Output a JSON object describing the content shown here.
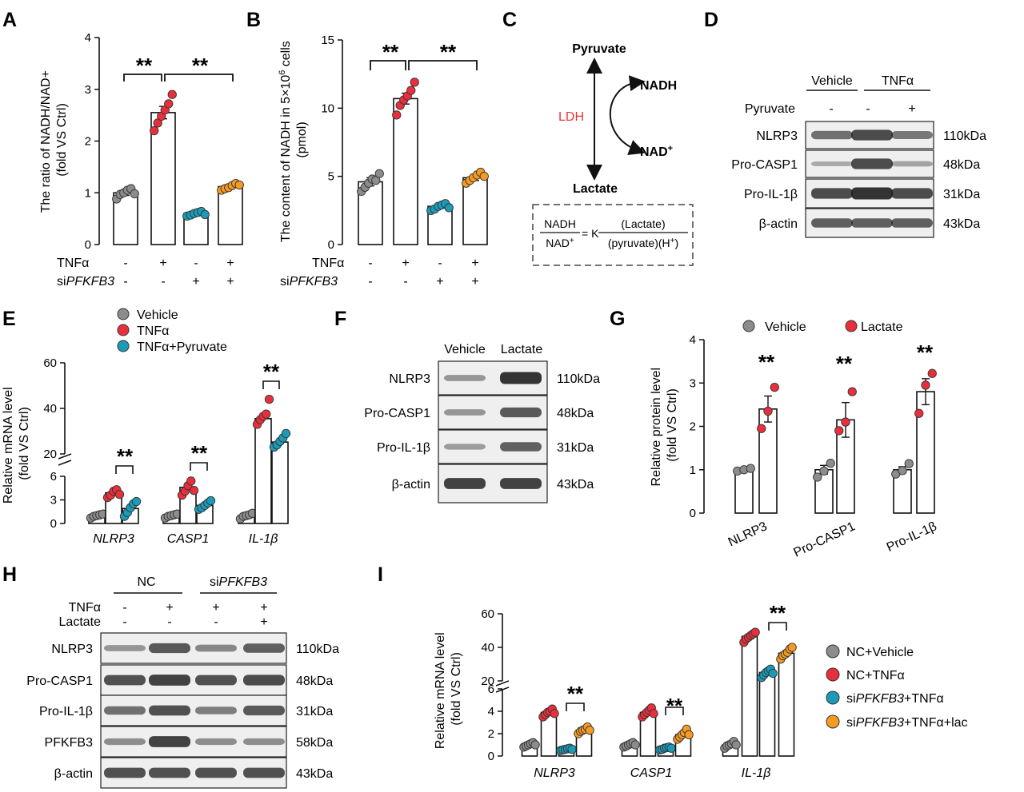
{
  "panel_letters": [
    "A",
    "B",
    "C",
    "D",
    "E",
    "F",
    "G",
    "H",
    "I"
  ],
  "colors": {
    "gray": "#8c8c8c",
    "red": "#e8303c",
    "teal": "#1b9bb8",
    "orange": "#f59a23",
    "redText": "#ee3333"
  },
  "sig_mark": "**",
  "treatment": {
    "tnf_label": "TNFα",
    "si_label_prefix": "si",
    "si_label_gene": "PFKFB3",
    "tnf_signs": [
      "-",
      "+",
      "-",
      "+"
    ],
    "si_signs": [
      "-",
      "-",
      "+",
      "+"
    ]
  },
  "panelA": {
    "ylabel_line1": "The ratio of NADH/NAD+",
    "ylabel_line2": "(fold VS Ctrl)",
    "yticks": [
      "0",
      "1",
      "2",
      "3",
      "4"
    ]
  },
  "panelB": {
    "ylabel_line1": "The content of NADH in 5×10",
    "ylabel_exp": "6",
    "ylabel_tail": " cells",
    "ylabel_line2": "(pmol)",
    "yticks": [
      "0",
      "5",
      "10",
      "15"
    ]
  },
  "panelC": {
    "top": "Pyruvate",
    "bottom": "Lactate",
    "nadh": "NADH",
    "nad": "NAD",
    "enzyme": "LDH",
    "eq_num_left": "NADH",
    "eq_den_left": "NAD",
    "eq_mid": "= K",
    "eq_num_right": "(Lactate)",
    "eq_den_right": "(pyruvate)(H",
    "sup_plus": "+",
    "close_paren": ")"
  },
  "panelD": {
    "groups": [
      "Vehicle",
      "TNFα"
    ],
    "pyruvate_label": "Pyruvate",
    "pyruvate_signs": [
      "-",
      "-",
      "+"
    ],
    "proteins": [
      "NLRP3",
      "Pro-CASP1",
      "Pro-IL-1β",
      "β-actin"
    ],
    "sizes": [
      "110kDa",
      "48kDa",
      "31kDa",
      "43kDa"
    ]
  },
  "panelE": {
    "legend": [
      "Vehicle",
      "TNFα",
      "TNFα+Pyruvate"
    ],
    "ylabel_line1": "Relative mRNA level",
    "ylabel_line2": "(fold VS Ctrl)",
    "yticks_low": [
      "0",
      "3",
      "6"
    ],
    "yticks_high": [
      "20",
      "40",
      "60"
    ],
    "genes": [
      "NLRP3",
      "CASP1",
      "IL-1β"
    ]
  },
  "panelF": {
    "groups": [
      "Vehicle",
      "Lactate"
    ],
    "proteins": [
      "NLRP3",
      "Pro-CASP1",
      "Pro-IL-1β",
      "β-actin"
    ],
    "sizes": [
      "110kDa",
      "48kDa",
      "31kDa",
      "43kDa"
    ]
  },
  "panelG": {
    "legend": [
      "Vehicle",
      "Lactate"
    ],
    "ylabel_line1": "Relative protein level",
    "ylabel_line2": "(fold VS Ctrl)",
    "yticks": [
      "0",
      "1",
      "2",
      "3",
      "4"
    ],
    "categories": [
      "NLRP3",
      "Pro-CASP1",
      "Pro-IL-1β"
    ]
  },
  "panelH": {
    "groups": [
      "NC",
      "PFKFB3"
    ],
    "tnf_signs": [
      "-",
      "+",
      "+",
      "+"
    ],
    "lac_label": "Lactate",
    "lac_signs": [
      "-",
      "-",
      "-",
      "+"
    ],
    "proteins": [
      "NLRP3",
      "Pro-CASP1",
      "Pro-IL-1β",
      "PFKFB3",
      "β-actin"
    ],
    "sizes": [
      "110kDa",
      "48kDa",
      "31kDa",
      "58kDa",
      "43kDa"
    ]
  },
  "panelI": {
    "ylabel_line1": "Relative mRNA level",
    "ylabel_line2": "(fold VS Ctrl)",
    "yticks_low": [
      "0",
      "2",
      "4",
      "6"
    ],
    "yticks_high": [
      "20",
      "40",
      "60"
    ],
    "genes": [
      "NLRP3",
      "CASP1",
      "IL-1β"
    ],
    "legend_nc_vehicle": "NC+Vehicle",
    "legend_nc_tnf": "NC+TNFα",
    "legend_si_tnf_suffix": "+TNFα",
    "legend_si_lac_suffix": "+TNFα+lac"
  },
  "chart_data": [
    {
      "id": "A",
      "type": "bar",
      "title": "",
      "ylabel": "The ratio of NADH/NAD+ (fold VS Ctrl)",
      "ylim": [
        0,
        4
      ],
      "categories": [
        "-/-",
        "+/-",
        "-/+",
        "+/+"
      ],
      "values": [
        1.0,
        2.55,
        0.6,
        1.12
      ],
      "errors": [
        0.05,
        0.12,
        0.03,
        0.05
      ],
      "points": [
        [
          0.88,
          0.97,
          1.0,
          1.05,
          1.08,
          0.98
        ],
        [
          2.2,
          2.35,
          2.48,
          2.6,
          2.72,
          2.9
        ],
        [
          0.55,
          0.57,
          0.6,
          0.62,
          0.64,
          0.58
        ],
        [
          1.05,
          1.08,
          1.1,
          1.14,
          1.18,
          1.15
        ]
      ]
    },
    {
      "id": "B",
      "type": "bar",
      "title": "",
      "ylabel": "The content of NADH in 5×10^6 cells (pmol)",
      "ylim": [
        0,
        15
      ],
      "categories": [
        "-/-",
        "+/-",
        "-/+",
        "+/+"
      ],
      "values": [
        4.6,
        10.7,
        2.8,
        4.9
      ],
      "errors": [
        0.3,
        0.4,
        0.15,
        0.2
      ],
      "points": [
        [
          3.9,
          4.2,
          4.5,
          4.8,
          4.7,
          5.2
        ],
        [
          9.5,
          10.2,
          10.6,
          10.9,
          11.3,
          11.9
        ],
        [
          2.5,
          2.6,
          2.8,
          2.9,
          3.0,
          2.7
        ],
        [
          4.5,
          4.7,
          4.9,
          5.1,
          5.3,
          5.0
        ]
      ]
    },
    {
      "id": "E",
      "type": "bar",
      "title": "",
      "ylabel": "Relative mRNA level (fold VS Ctrl)",
      "ylim": [
        0,
        60
      ],
      "categories": [
        "NLRP3",
        "CASP1",
        "IL-1β"
      ],
      "series": [
        {
          "name": "Vehicle",
          "values": [
            1.0,
            1.0,
            1.0
          ],
          "points": [
            [
              0.7,
              0.9,
              1.0,
              1.1,
              1.2
            ],
            [
              0.7,
              0.9,
              1.0,
              1.1,
              1.2
            ],
            [
              0.6,
              0.9,
              1.0,
              1.1,
              1.3
            ]
          ]
        },
        {
          "name": "TNFα",
          "values": [
            3.9,
            4.6,
            35.5
          ],
          "points": [
            [
              3.3,
              3.6,
              4.1,
              4.3,
              3.7
            ],
            [
              3.6,
              4.1,
              4.8,
              5.4,
              4.2
            ],
            [
              33,
              35,
              36.5,
              37.5,
              44
            ]
          ]
        },
        {
          "name": "TNFα+Pyruvate",
          "values": [
            1.9,
            2.3,
            25.2
          ],
          "points": [
            [
              0.9,
              1.4,
              2.0,
              2.5,
              2.8
            ],
            [
              1.8,
              2.0,
              2.3,
              2.6,
              2.9
            ],
            [
              23,
              24,
              25.5,
              27,
              29
            ]
          ]
        }
      ],
      "breaks": [
        [
          6,
          20
        ]
      ]
    },
    {
      "id": "G",
      "type": "bar",
      "title": "",
      "ylabel": "Relative protein level (fold VS Ctrl)",
      "ylim": [
        0,
        4
      ],
      "categories": [
        "NLRP3",
        "Pro-CASP1",
        "Pro-IL-1β"
      ],
      "series": [
        {
          "name": "Vehicle",
          "values": [
            1.0,
            1.0,
            1.0
          ],
          "points": [
            [
              0.97,
              1.0,
              1.03
            ],
            [
              0.83,
              0.97,
              1.15
            ],
            [
              0.9,
              0.98,
              1.14
            ]
          ]
        },
        {
          "name": "Lactate",
          "values": [
            2.4,
            2.15,
            2.8
          ],
          "points": [
            [
              1.95,
              2.35,
              2.9
            ],
            [
              1.9,
              2.1,
              2.8
            ],
            [
              2.3,
              2.95,
              3.22
            ]
          ]
        }
      ]
    },
    {
      "id": "I",
      "type": "bar",
      "title": "",
      "ylabel": "Relative mRNA level (fold VS Ctrl)",
      "ylim": [
        0,
        60
      ],
      "categories": [
        "NLRP3",
        "CASP1",
        "IL-1β"
      ],
      "series": [
        {
          "name": "NC+Vehicle",
          "values": [
            1.0,
            1.0,
            1.0
          ],
          "points": [
            [
              0.8,
              0.9,
              1.0,
              1.1,
              1.2,
              1.0
            ],
            [
              0.8,
              0.9,
              1.0,
              1.1,
              1.2,
              1.0
            ],
            [
              0.7,
              0.9,
              1.0,
              1.1,
              1.3,
              1.0
            ]
          ]
        },
        {
          "name": "NC+TNFα",
          "values": [
            3.9,
            3.9,
            46.5
          ],
          "points": [
            [
              3.5,
              3.7,
              3.9,
              4.0,
              4.2,
              3.8
            ],
            [
              3.5,
              3.7,
              3.9,
              4.1,
              4.3,
              3.8
            ],
            [
              43,
              45,
              46,
              47,
              48,
              49
            ]
          ]
        },
        {
          "name": "siPFKFB3+TNFα",
          "values": [
            0.6,
            0.7,
            25.0
          ],
          "points": [
            [
              0.5,
              0.55,
              0.6,
              0.65,
              0.7,
              0.6
            ],
            [
              0.55,
              0.6,
              0.7,
              0.75,
              0.8,
              0.7
            ],
            [
              22,
              23.5,
              25,
              26,
              27,
              24.5
            ]
          ]
        },
        {
          "name": "siPFKFB3+TNFα+lac",
          "values": [
            2.3,
            1.9,
            36.5
          ],
          "points": [
            [
              2.0,
              2.2,
              2.3,
              2.4,
              2.6,
              2.3
            ],
            [
              1.5,
              1.7,
              1.9,
              2.1,
              2.4,
              1.9
            ],
            [
              33,
              35,
              36,
              37,
              39,
              40
            ]
          ]
        }
      ],
      "breaks": [
        [
          6,
          20
        ]
      ]
    }
  ]
}
